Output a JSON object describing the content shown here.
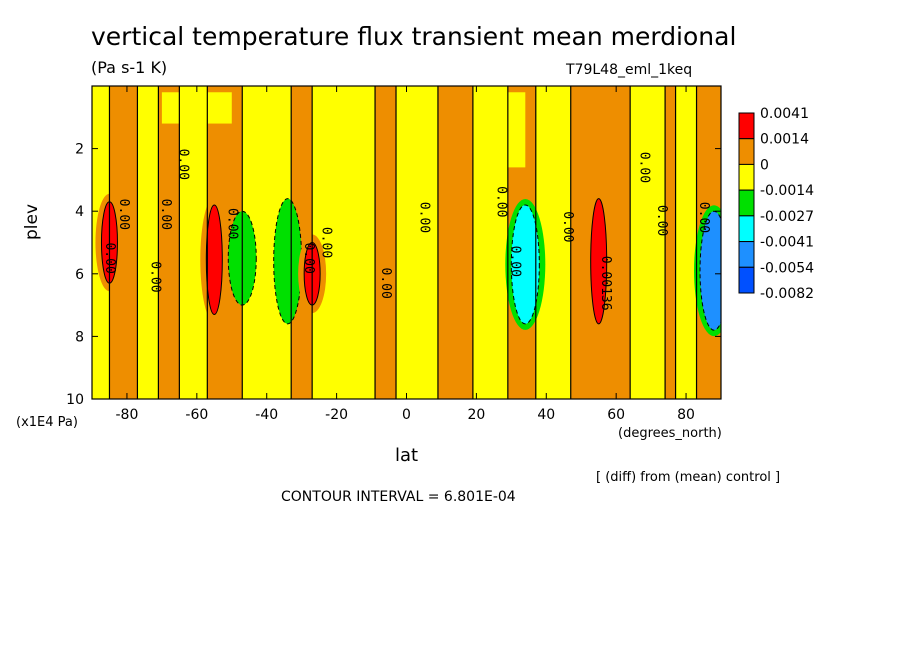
{
  "title": "vertical temperature flux transient mean merdional",
  "units": "(Pa s-1 K)",
  "run_id": "T79L48_eml_1keq",
  "y_unit": "(x1E4 Pa)",
  "x_unit": "(degrees_north)",
  "x_axis_label": "lat",
  "y_axis_label": "plev",
  "diff_note": "[ (diff) from (mean) control ]",
  "contour_interval": "CONTOUR INTERVAL = 6.801E-04",
  "chart_data": {
    "type": "heatmap",
    "title": "vertical temperature flux transient mean merdional",
    "xlabel": "lat",
    "ylabel": "plev",
    "xlim": [
      -90,
      90
    ],
    "ylim": [
      10,
      0
    ],
    "x_ticks": [
      -80,
      -60,
      -40,
      -20,
      0,
      20,
      40,
      60,
      80
    ],
    "y_ticks": [
      2,
      4,
      6,
      8,
      10
    ],
    "colorbar": {
      "levels": [
        "0.0041",
        "0.0014",
        "0",
        "-0.0014",
        "-0.0027",
        "-0.0041",
        "-0.0054",
        "-0.0082"
      ],
      "colors": [
        "#ff0000",
        "#ee8e00",
        "#ffff00",
        "#00e000",
        "#00ffff",
        "#1e90ff",
        "#0050ff"
      ]
    },
    "features": [
      {
        "lat": -85,
        "plev_top": 3.7,
        "plev_bottom": 6.3,
        "sign": "positive",
        "color": "#ff0000"
      },
      {
        "lat": -55,
        "plev_top": 3.8,
        "plev_bottom": 7.3,
        "sign": "positive",
        "color": "#ff0000"
      },
      {
        "lat": -47,
        "plev_top": 4.0,
        "plev_bottom": 7.0,
        "sign": "negative",
        "color": "#00e000"
      },
      {
        "lat": -34,
        "plev_top": 3.6,
        "plev_bottom": 7.6,
        "sign": "negative",
        "color": "#00e000"
      },
      {
        "lat": -27,
        "plev_top": 5.0,
        "plev_bottom": 7.0,
        "sign": "positive",
        "color": "#ff0000"
      },
      {
        "lat": 34,
        "plev_top": 3.8,
        "plev_bottom": 7.6,
        "sign": "negative",
        "color": "#00ffff"
      },
      {
        "lat": 55,
        "plev_top": 3.6,
        "plev_bottom": 7.6,
        "sign": "positive",
        "color": "#ff0000"
      },
      {
        "lat": 88,
        "plev_top": 4.0,
        "plev_bottom": 7.8,
        "sign": "negative",
        "color": "#1e90ff"
      }
    ],
    "contour_labels": [
      {
        "text": "0.00",
        "lat": -65,
        "plev": 2.5
      },
      {
        "text": "0.00",
        "lat": -82,
        "plev": 4.1
      },
      {
        "text": "0.00",
        "lat": -70,
        "plev": 4.1
      },
      {
        "text": "0.00",
        "lat": -86,
        "plev": 5.5
      },
      {
        "text": "0.00",
        "lat": -73,
        "plev": 6.1
      },
      {
        "text": "0.00",
        "lat": -51,
        "plev": 4.4
      },
      {
        "text": "0.00",
        "lat": -29,
        "plev": 5.5
      },
      {
        "text": "0.00",
        "lat": -24,
        "plev": 5.0
      },
      {
        "text": "0.00",
        "lat": -7,
        "plev": 6.3
      },
      {
        "text": "0.00",
        "lat": 4,
        "plev": 4.2
      },
      {
        "text": "0.00",
        "lat": 26,
        "plev": 3.7
      },
      {
        "text": "0.00",
        "lat": 30,
        "plev": 5.6
      },
      {
        "text": "0.00",
        "lat": 45,
        "plev": 4.5
      },
      {
        "text": "0.00",
        "lat": 67,
        "plev": 2.6
      },
      {
        "text": "0.00",
        "lat": 72,
        "plev": 4.3
      },
      {
        "text": "0.00",
        "lat": 84,
        "plev": 4.2
      },
      {
        "text": "0.00136",
        "lat": 56,
        "plev": 6.3
      }
    ]
  }
}
